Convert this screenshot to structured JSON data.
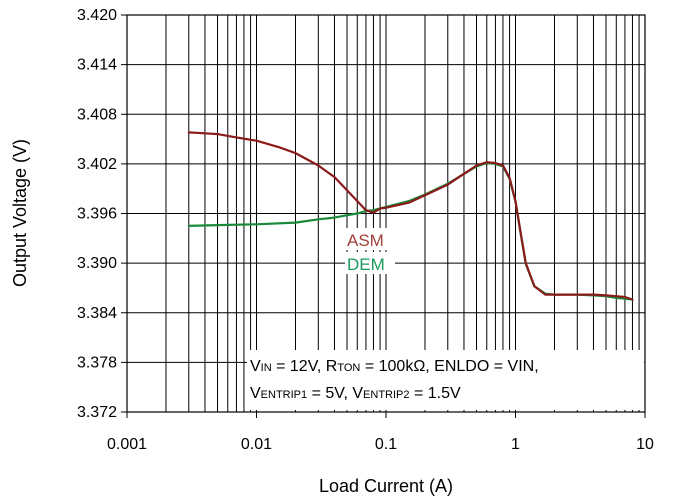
{
  "chart_data": {
    "type": "line",
    "title": "",
    "xlabel": "Load Current (A)",
    "ylabel": "Output Voltage (V)",
    "x_scale": "log",
    "xlim": [
      0.001,
      10
    ],
    "ylim": [
      3.372,
      3.42
    ],
    "grid": true,
    "x_ticks": [
      "0.001",
      "0.01",
      "0.1",
      "1",
      "10"
    ],
    "y_ticks": [
      "3.420",
      "3.414",
      "3.408",
      "3.402",
      "3.396",
      "3.390",
      "3.384",
      "3.378",
      "3.372"
    ],
    "series": [
      {
        "name": "ASM",
        "color": "#8b1a1a",
        "x": [
          0.003,
          0.004,
          0.005,
          0.007,
          0.01,
          0.015,
          0.02,
          0.03,
          0.04,
          0.05,
          0.06,
          0.07,
          0.08,
          0.09,
          0.1,
          0.15,
          0.2,
          0.3,
          0.4,
          0.5,
          0.6,
          0.7,
          0.8,
          0.9,
          1.0,
          1.1,
          1.2,
          1.4,
          1.7,
          2,
          3,
          4,
          5,
          6,
          7,
          8
        ],
        "y": [
          3.4058,
          3.4057,
          3.4056,
          3.4052,
          3.4048,
          3.404,
          3.4033,
          3.4018,
          3.4004,
          3.3988,
          3.3975,
          3.3964,
          3.3961,
          3.3966,
          3.3967,
          3.3973,
          3.3982,
          3.3995,
          3.4008,
          3.4018,
          3.4022,
          3.4021,
          3.4018,
          3.4003,
          3.3975,
          3.3935,
          3.39,
          3.3872,
          3.3862,
          3.3862,
          3.3862,
          3.3862,
          3.3861,
          3.386,
          3.3859,
          3.3856
        ]
      },
      {
        "name": "DEM",
        "color": "#1a8a3a",
        "x": [
          0.003,
          0.005,
          0.01,
          0.02,
          0.03,
          0.04,
          0.05,
          0.06,
          0.07,
          0.08,
          0.09,
          0.1,
          0.15,
          0.2,
          0.3,
          0.4,
          0.5,
          0.6,
          0.7,
          0.8,
          0.9,
          1.0,
          1.1,
          1.2,
          1.4,
          1.7,
          2,
          3,
          4,
          5,
          6,
          7,
          8
        ],
        "y": [
          3.3945,
          3.3946,
          3.3947,
          3.3949,
          3.3953,
          3.3955,
          3.3958,
          3.396,
          3.3963,
          3.3964,
          3.3966,
          3.3968,
          3.3975,
          3.3983,
          3.3996,
          3.4008,
          3.4017,
          3.4021,
          3.402,
          3.4017,
          3.4002,
          3.3974,
          3.3934,
          3.3899,
          3.3872,
          3.3863,
          3.3862,
          3.3862,
          3.3861,
          3.386,
          3.3858,
          3.3857,
          3.3856
        ]
      }
    ],
    "annotations": {
      "asm_label": "ASM",
      "dem_label": "DEM",
      "conditions": {
        "line1": [
          {
            "text": "V"
          },
          {
            "text": "IN",
            "sub": true
          },
          {
            "text": " = 12V, R"
          },
          {
            "text": "TON",
            "sub": true
          },
          {
            "text": " = 100kΩ,  ENLDO = VIN,"
          }
        ],
        "line2": [
          {
            "text": "V"
          },
          {
            "text": "ENTRIP1",
            "sub": true
          },
          {
            "text": " = 5V,  V"
          },
          {
            "text": "ENTRIP2",
            "sub": true
          },
          {
            "text": " = 1.5V"
          }
        ]
      }
    }
  }
}
